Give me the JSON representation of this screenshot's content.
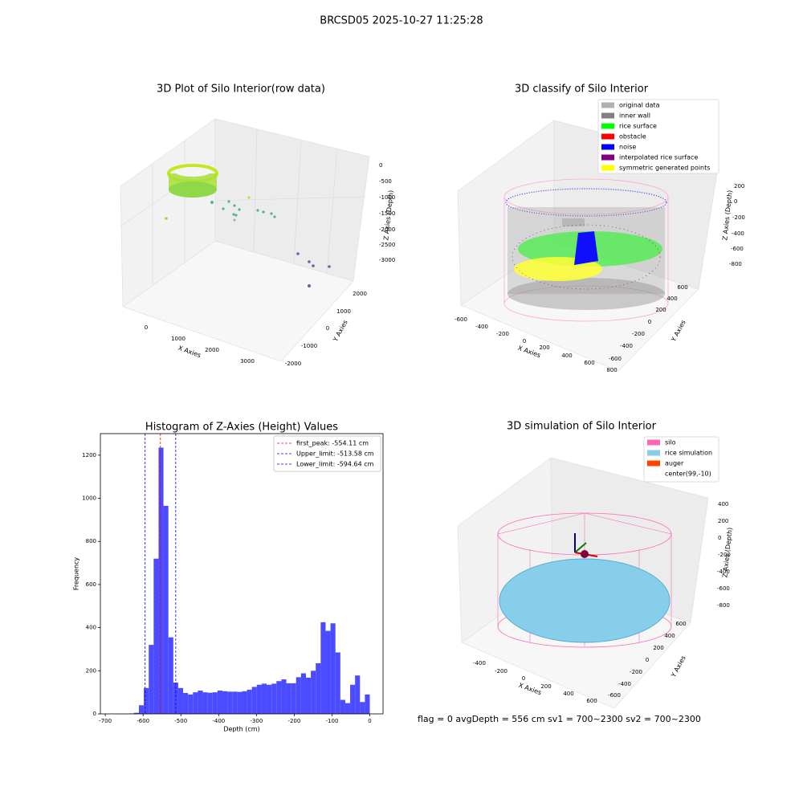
{
  "title": "BRCSD05 2025-10-27 11:25:28",
  "status": "flag = 0     avgDepth = 556 cm  sv1 = 700~2300  sv2 = 700~2300",
  "panels": [
    {
      "title": "3D Plot of Silo Interior(row data)",
      "xlabel": "X Axies",
      "ylabel": "Y Axies",
      "zlabel": "Z Axies (Depth)",
      "xticks": [
        0,
        1000,
        2000,
        3000
      ],
      "yticks": [
        -2000,
        -1000,
        0,
        1000,
        2000
      ],
      "zticks": [
        0,
        -500,
        -1000,
        -1500,
        -2000,
        -2500,
        -3000
      ]
    },
    {
      "title": "3D classify of Silo Interior",
      "xlabel": "X Axies",
      "ylabel": "Y Axies",
      "zlabel": "Z Axies (Depth)",
      "xticks": [
        -600,
        -400,
        -200,
        0,
        200,
        400,
        600,
        800
      ],
      "yticks": [
        -600,
        -400,
        -200,
        0,
        200,
        400,
        600
      ],
      "zticks": [
        200,
        0,
        -200,
        -400,
        -600,
        -800
      ],
      "legend": [
        {
          "name": "original data",
          "color": "#b0b0b0"
        },
        {
          "name": "inner wall",
          "color": "#808080"
        },
        {
          "name": "rice surface",
          "color": "#00ff00"
        },
        {
          "name": "obstacle",
          "color": "#ff0000"
        },
        {
          "name": "noise",
          "color": "#0000ff"
        },
        {
          "name": "interpolated rice surface",
          "color": "#800080"
        },
        {
          "name": "symmetric generated points",
          "color": "#ffff00"
        }
      ]
    },
    {
      "title": "3D simulation of Silo Interior",
      "xlabel": "X Axies",
      "ylabel": "Y Axies",
      "zlabel": "Z Axies (Depth)",
      "xticks": [
        -400,
        -200,
        0,
        200,
        400,
        600
      ],
      "yticks": [
        -600,
        -400,
        -200,
        0,
        200,
        400,
        600
      ],
      "zticks": [
        400,
        200,
        0,
        -200,
        -400,
        -600,
        -800
      ],
      "legend": [
        {
          "name": "silo",
          "color": "#ff69b4"
        },
        {
          "name": "rice simulation",
          "color": "#87ceeb"
        },
        {
          "name": "auger",
          "color": "#ff4500"
        },
        {
          "name": "center(99,-10)"
        }
      ]
    }
  ],
  "chart_data": {
    "type": "histogram",
    "title": "Histogram of Z-Axies (Height) Values",
    "xlabel": "Depth (cm)",
    "ylabel": "Frequency",
    "bins": [
      -637,
      -624,
      -611,
      -598,
      -585,
      -572,
      -559,
      -546,
      -533,
      -520,
      -507,
      -494,
      -481,
      -468,
      -455,
      -442,
      -429,
      -416,
      -403,
      -390,
      -377,
      -364,
      -351,
      -338,
      -325,
      -312,
      -299,
      -286,
      -273,
      -260,
      -247,
      -234,
      -221,
      -208,
      -195,
      -182,
      -169,
      -156,
      -143,
      -130,
      -117,
      -104,
      -91,
      -78,
      -65,
      -52,
      -39,
      -26,
      -13,
      0
    ],
    "values": [
      2,
      5,
      40,
      120,
      320,
      720,
      1235,
      965,
      355,
      145,
      120,
      97,
      90,
      100,
      108,
      100,
      98,
      100,
      108,
      105,
      103,
      103,
      102,
      105,
      112,
      125,
      135,
      140,
      135,
      140,
      152,
      160,
      142,
      142,
      170,
      188,
      168,
      200,
      235,
      425,
      385,
      420,
      285,
      65,
      50,
      135,
      178,
      55,
      90
    ],
    "color": "#4b4bff",
    "xlim": [
      -713,
      35
    ],
    "ylim": [
      0,
      1300
    ],
    "xticks": [
      -700,
      -600,
      -500,
      -400,
      -300,
      -200,
      -100,
      0
    ],
    "yticks": [
      0,
      200,
      400,
      600,
      800,
      1000,
      1200
    ],
    "lines": [
      {
        "label": "first_peak: -554.11 cm",
        "value": -554.11,
        "color": "#ff0000"
      },
      {
        "label": "Upper_limit: -513.58 cm",
        "value": -513.58,
        "color": "#0000ff"
      },
      {
        "label": "Lower_limit: -594.64 cm",
        "value": -594.64,
        "color": "#0000ff"
      }
    ],
    "legend": "upper right"
  }
}
